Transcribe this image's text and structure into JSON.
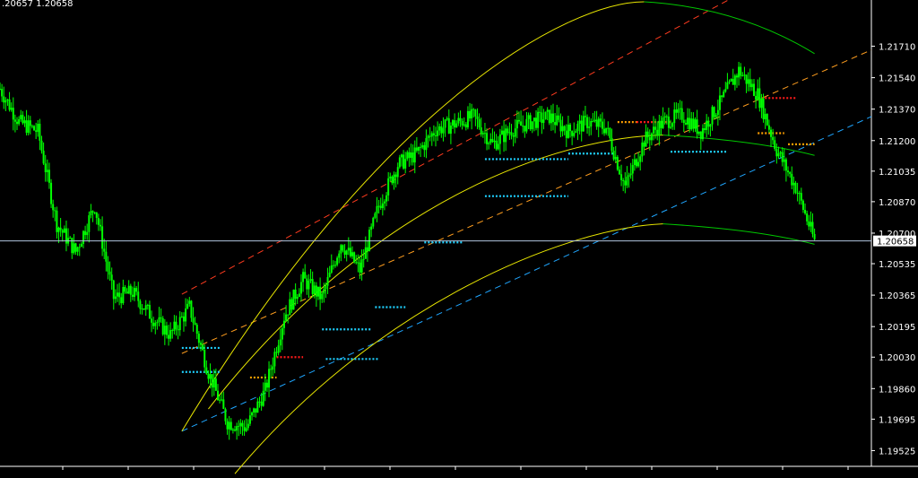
{
  "header": {
    "bid_ask": ".20657 1.20658"
  },
  "colors": {
    "background": "#000000",
    "candles": "#00ff00",
    "axis": "#ffffff",
    "current_price_line": "#b0c4de",
    "current_price_tag_bg": "#ffffff",
    "channel_red": "#ff3b1f",
    "channel_orange": "#ff9e1f",
    "channel_blue": "#1fa6ff",
    "arc_yellow": "#e8e600",
    "arc_green": "#00c800",
    "dots_cyan": "#1fd1ff",
    "dots_orange": "#ffa000",
    "dots_red": "#ff1a1a"
  },
  "chart_data": {
    "type": "line",
    "instrument_style": "candlestick price chart with regression channels, parabolic arcs and dotted levels",
    "y_axis": {
      "side": "right",
      "ticks": [
        1.2171,
        1.2154,
        1.2137,
        1.212,
        1.21035,
        1.2087,
        1.207,
        1.20535,
        1.20365,
        1.20195,
        1.2003,
        1.1986,
        1.19695,
        1.19525
      ],
      "tick_labels": [
        "1.21710",
        "1.21540",
        "1.21370",
        "1.21200",
        "1.21035",
        "1.20870",
        "1.20700",
        "1.20535",
        "1.20365",
        "1.20195",
        "1.20030",
        "1.19860",
        "1.19695",
        "1.19525"
      ],
      "ylim": [
        1.1944,
        1.2195
      ]
    },
    "x_range": [
      0,
      230
    ],
    "current_price": 1.20658,
    "current_price_label": "1.20658",
    "x": [
      0,
      5,
      10,
      15,
      20,
      25,
      30,
      35,
      40,
      45,
      50,
      55,
      60,
      65,
      70,
      75,
      80,
      85,
      90,
      95,
      100,
      105,
      110,
      115,
      120,
      125,
      130,
      135,
      140,
      145,
      150,
      155,
      160,
      165,
      170,
      175,
      180,
      185,
      190,
      195,
      200,
      205,
      210,
      215
    ],
    "price": [
      1.2148,
      1.213,
      1.2125,
      1.2075,
      1.206,
      1.2085,
      1.2035,
      1.2038,
      1.2025,
      1.2015,
      1.203,
      1.1995,
      1.1968,
      1.1965,
      1.1985,
      1.2025,
      1.2045,
      1.2035,
      1.2065,
      1.205,
      1.2085,
      1.2107,
      1.2113,
      1.2126,
      1.2129,
      1.2133,
      1.2118,
      1.2126,
      1.213,
      1.2133,
      1.2125,
      1.213,
      1.2127,
      1.2095,
      1.212,
      1.213,
      1.2134,
      1.2125,
      1.214,
      1.2158,
      1.2145,
      1.2115,
      1.2095,
      1.20658
    ],
    "channels": [
      {
        "color": "red",
        "dash": true,
        "x": [
          48,
          195
        ],
        "y": [
          1.2037,
          1.2199
        ]
      },
      {
        "color": "orange",
        "dash": true,
        "x": [
          48,
          230
        ],
        "y": [
          1.2005,
          1.2169
        ]
      },
      {
        "color": "blue",
        "dash": true,
        "x": [
          48,
          230
        ],
        "y": [
          1.1963,
          1.2133
        ]
      }
    ],
    "arcs": [
      {
        "color": "yellow",
        "x": [
          48,
          100,
          150,
          170
        ],
        "y": [
          1.1963,
          1.214,
          1.2195,
          1.2195
        ]
      },
      {
        "color": "green",
        "x": [
          170,
          195,
          215
        ],
        "y": [
          1.2195,
          1.2192,
          1.2167
        ]
      },
      {
        "color": "yellow",
        "x": [
          55,
          100,
          150,
          175
        ],
        "y": [
          1.1975,
          1.2093,
          1.2122,
          1.2123
        ]
      },
      {
        "color": "green",
        "x": [
          175,
          200,
          215
        ],
        "y": [
          1.2123,
          1.212,
          1.2112
        ]
      },
      {
        "color": "yellow",
        "x": [
          62,
          100,
          150,
          175
        ],
        "y": [
          1.194,
          1.2033,
          1.2073,
          1.2075
        ]
      },
      {
        "color": "green",
        "x": [
          175,
          200,
          215
        ],
        "y": [
          1.2075,
          1.2072,
          1.2064
        ]
      }
    ],
    "dot_levels": [
      {
        "color": "cyan",
        "x": [
          48,
          58
        ],
        "y": 1.2008
      },
      {
        "color": "cyan",
        "x": [
          48,
          58
        ],
        "y": 1.1995
      },
      {
        "color": "orange",
        "x": [
          66,
          73
        ],
        "y": 1.1992
      },
      {
        "color": "red",
        "x": [
          73,
          80
        ],
        "y": 1.2003
      },
      {
        "color": "cyan",
        "x": [
          85,
          98
        ],
        "y": 1.2018
      },
      {
        "color": "cyan",
        "x": [
          86,
          100
        ],
        "y": 1.2002
      },
      {
        "color": "cyan",
        "x": [
          99,
          107
        ],
        "y": 1.203
      },
      {
        "color": "cyan",
        "x": [
          112,
          122
        ],
        "y": 1.2065
      },
      {
        "color": "cyan",
        "x": [
          128,
          150
        ],
        "y": 1.209
      },
      {
        "color": "cyan",
        "x": [
          128,
          150
        ],
        "y": 1.211
      },
      {
        "color": "cyan",
        "x": [
          150,
          162
        ],
        "y": 1.2113
      },
      {
        "color": "cyan",
        "x": [
          177,
          192
        ],
        "y": 1.2114
      },
      {
        "color": "orange",
        "x": [
          163,
          168
        ],
        "y": 1.213
      },
      {
        "color": "red",
        "x": [
          168,
          177
        ],
        "y": 1.213
      },
      {
        "color": "red",
        "x": [
          200,
          210
        ],
        "y": 1.2143
      },
      {
        "color": "orange",
        "x": [
          200,
          207
        ],
        "y": 1.2124
      },
      {
        "color": "orange",
        "x": [
          208,
          215
        ],
        "y": 1.2118
      }
    ]
  }
}
